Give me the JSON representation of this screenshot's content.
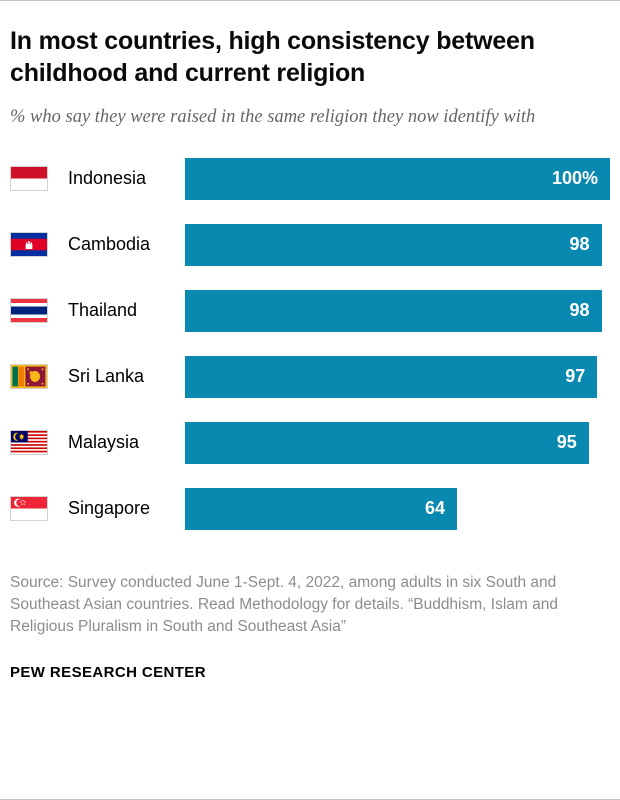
{
  "header": {
    "title": "In most countries, high consistency between childhood and current religion",
    "subtitle": "% who say they were raised in the same religion they now identify with"
  },
  "chart_data": {
    "type": "bar",
    "orientation": "horizontal",
    "title": "In most countries, high consistency between childhood and current religion",
    "xlabel": "",
    "ylabel": "",
    "xlim": [
      0,
      100
    ],
    "grid": false,
    "bar_color": "#0a89b0",
    "value_label_color": "#ffffff",
    "categories": [
      "Indonesia",
      "Cambodia",
      "Thailand",
      "Sri Lanka",
      "Malaysia",
      "Singapore"
    ],
    "values": [
      100,
      98,
      98,
      97,
      95,
      64
    ],
    "rows": [
      {
        "country": "Indonesia",
        "value": 100,
        "label": "100%",
        "flag": "indonesia-flag-icon"
      },
      {
        "country": "Cambodia",
        "value": 98,
        "label": "98",
        "flag": "cambodia-flag-icon"
      },
      {
        "country": "Thailand",
        "value": 98,
        "label": "98",
        "flag": "thailand-flag-icon"
      },
      {
        "country": "Sri Lanka",
        "value": 97,
        "label": "97",
        "flag": "sri-lanka-flag-icon"
      },
      {
        "country": "Malaysia",
        "value": 95,
        "label": "95",
        "flag": "malaysia-flag-icon"
      },
      {
        "country": "Singapore",
        "value": 64,
        "label": "64",
        "flag": "singapore-flag-icon"
      }
    ]
  },
  "footer": {
    "source": "Source: Survey conducted June 1-Sept. 4, 2022, among adults in six South and Southeast Asian countries. Read Methodology for details. “Buddhism, Islam and Religious Pluralism in South and Southeast Asia”",
    "org": "PEW RESEARCH CENTER"
  }
}
